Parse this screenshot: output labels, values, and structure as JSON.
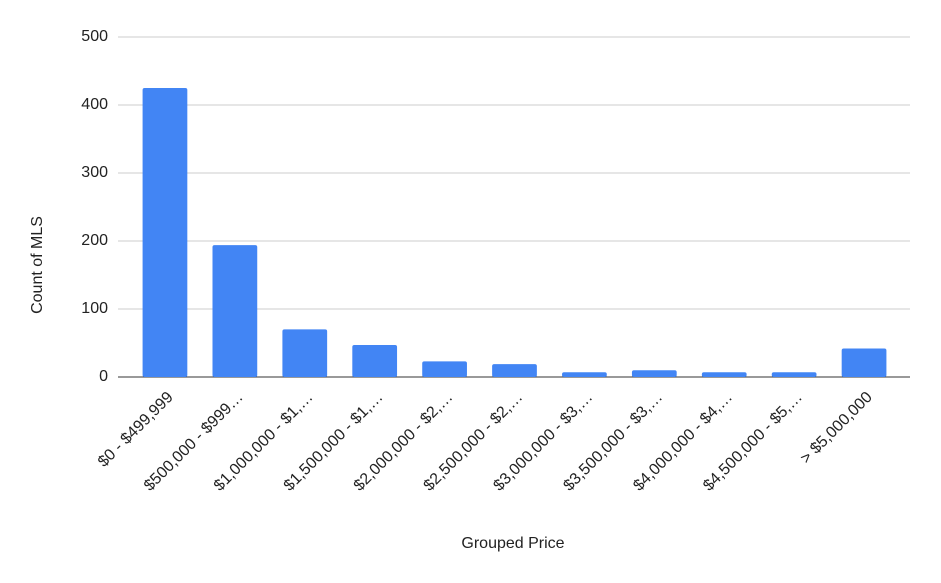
{
  "chart_data": {
    "type": "bar",
    "x_label": "Grouped Price",
    "y_label": "Count of MLS",
    "categories": [
      "$0 - $499,999",
      "$500,000 - $999…",
      "$1,000,000 - $1,…",
      "$1,500,000 - $1,…",
      "$2,000,000 - $2,…",
      "$2,500,000 - $2,…",
      "$3,000,000 - $3,…",
      "$3,500,000 - $3,…",
      "$4,000,000 - $4,…",
      "$4,500,000 - $5,…",
      "> $5,000,000"
    ],
    "values": [
      425,
      194,
      70,
      47,
      23,
      19,
      7,
      10,
      7,
      7,
      42
    ],
    "color": "#4285f4",
    "ylim": [
      0,
      500
    ],
    "yticks": [
      0,
      100,
      200,
      300,
      400,
      500
    ],
    "grid": true
  }
}
